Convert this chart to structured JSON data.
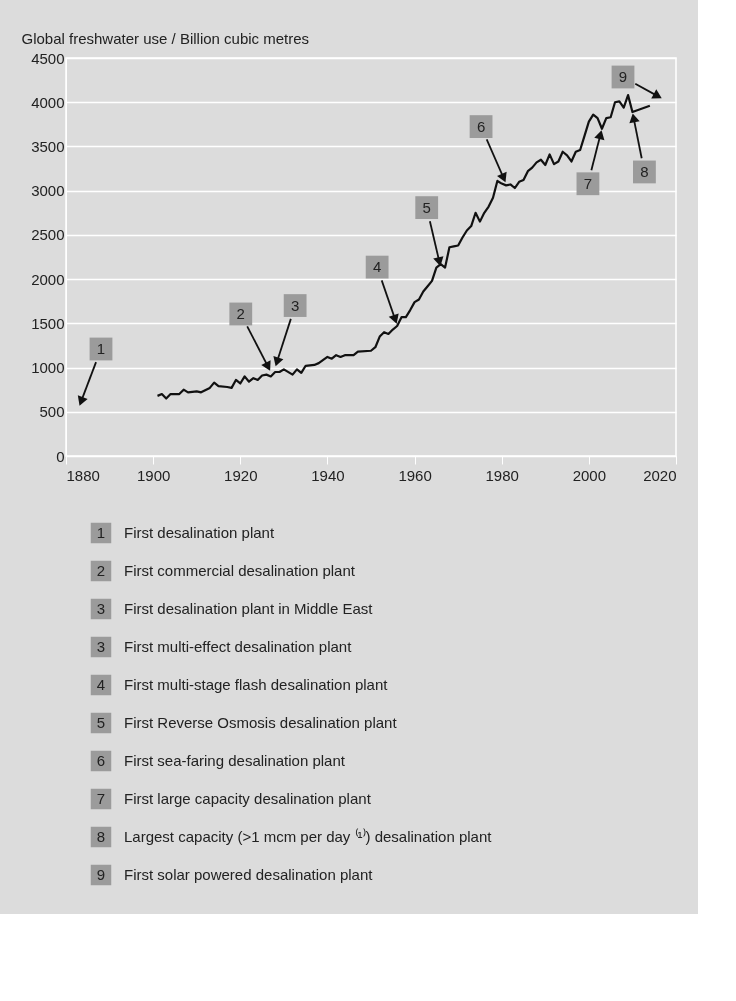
{
  "chart_data": {
    "type": "line",
    "ylabel": "Global freshwater use / Billion cubic metres",
    "x": [
      1901,
      1902,
      1903,
      1904,
      1906,
      1907,
      1908,
      1910,
      1911,
      1913,
      1914,
      1915,
      1917,
      1918,
      1919,
      1920,
      1921,
      1922,
      1923,
      1924,
      1925,
      1926,
      1927,
      1928,
      1929,
      1930,
      1932,
      1933,
      1934,
      1935,
      1937,
      1938,
      1940,
      1941,
      1942,
      1943,
      1944,
      1946,
      1947,
      1950,
      1951,
      1952,
      1953,
      1954,
      1955,
      1956,
      1957,
      1958,
      1959,
      1960,
      1961,
      1962,
      1963,
      1964,
      1965,
      1966,
      1967,
      1968,
      1969,
      1970,
      1971,
      1972,
      1973,
      1974,
      1975,
      1976,
      1977,
      1978,
      1979,
      1980,
      1981,
      1982,
      1983,
      1984,
      1985,
      1986,
      1987,
      1988,
      1989,
      1990,
      1991,
      1992,
      1993,
      1994,
      1995,
      1996,
      1997,
      1998,
      1999,
      2000,
      2001,
      2002,
      2003,
      2004,
      2005,
      2006,
      2007,
      2008,
      2009,
      2010,
      2014
    ],
    "series": [
      {
        "color": "#111111",
        "values": [
          680,
          700,
          650,
          700,
          700,
          750,
          720,
          730,
          720,
          770,
          830,
          790,
          780,
          770,
          860,
          820,
          900,
          840,
          880,
          860,
          910,
          920,
          900,
          950,
          950,
          980,
          920,
          980,
          940,
          1020,
          1030,
          1050,
          1120,
          1100,
          1140,
          1120,
          1140,
          1140,
          1180,
          1190,
          1230,
          1350,
          1400,
          1380,
          1430,
          1470,
          1570,
          1570,
          1650,
          1740,
          1770,
          1860,
          1920,
          1980,
          2130,
          2170,
          2130,
          2360,
          2370,
          2380,
          2470,
          2550,
          2600,
          2750,
          2650,
          2750,
          2820,
          2920,
          3110,
          3080,
          3060,
          3070,
          3030,
          3100,
          3120,
          3220,
          3260,
          3320,
          3350,
          3290,
          3410,
          3300,
          3330,
          3440,
          3400,
          3330,
          3440,
          3460,
          3620,
          3780,
          3860,
          3820,
          3700,
          3820,
          3830,
          4000,
          4010,
          3940,
          4080,
          3890,
          3960
        ]
      }
    ],
    "xlim": [
      1880,
      2020
    ],
    "xticks": [
      1880,
      1900,
      1920,
      1940,
      1960,
      1980,
      2000,
      2020
    ],
    "ylim": [
      0,
      4500
    ],
    "yticks": [
      0,
      500,
      1000,
      1500,
      2000,
      2500,
      3000,
      3500,
      4000,
      4500
    ],
    "grid": "y",
    "marker": "none",
    "line_style": "solid",
    "annotations": [
      "1",
      {
        "text": "2",
        "x": 1927,
        "y": 950
      },
      {
        "text": "3",
        "x": 1928,
        "y": 1000
      },
      {
        "text": "4",
        "x": 1956,
        "y": 1480
      },
      {
        "text": "5",
        "x": 1966,
        "y": 2130
      },
      {
        "text": "6",
        "x": 1981,
        "y": 3080
      },
      {
        "text": "7",
        "x": 2003,
        "y": 3700
      },
      {
        "text": "8",
        "x": 2010,
        "y": 3890
      },
      "9",
      "1 First desalination plant",
      "2 First commercial desalination plant",
      "3 First desalination plant in Middle East",
      "3 First multi-effect desalination plant",
      "4 First multi-stage flash desalination plant",
      "5 First Reverse Osmosis desalination plant",
      "6 First sea-faring desalination plant",
      "7 First large capacity desalination plant",
      "8 Largest capacity (>1 mcm per day ⁽¹⁾) desalination plant",
      "9 First solar powered desalination plant"
    ]
  }
}
